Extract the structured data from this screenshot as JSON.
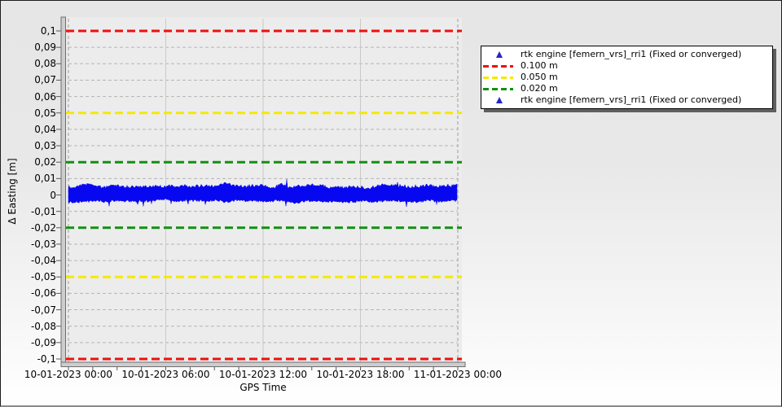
{
  "chart_data": {
    "type": "line",
    "title": "",
    "xlabel": "GPS Time",
    "ylabel": "Δ Easting [m]",
    "x_axis": {
      "tick_labels": [
        "10-01-2023 00:00",
        "10-01-2023 06:00",
        "10-01-2023 12:00",
        "10-01-2023 18:00",
        "11-01-2023 00:00"
      ],
      "tick_hours": [
        0,
        6,
        12,
        18,
        24
      ],
      "minor_tick_step_hours": 1.5,
      "solid_grid_hours": [
        6,
        12,
        18
      ],
      "dashed_grid_hours": [
        0,
        24
      ],
      "range_hours": [
        0,
        24
      ]
    },
    "y_axis": {
      "tick_values": [
        0.1,
        0.09,
        0.08,
        0.07,
        0.06,
        0.05,
        0.04,
        0.03,
        0.02,
        0.01,
        0,
        -0.01,
        -0.02,
        -0.03,
        -0.04,
        -0.05,
        -0.06,
        -0.07,
        -0.08,
        -0.09,
        -0.1
      ],
      "tick_labels": [
        "0,1",
        "0,09",
        "0,08",
        "0,07",
        "0,06",
        "0,05",
        "0,04",
        "0,03",
        "0,02",
        "0,01",
        "0",
        "-0,01",
        "-0,02",
        "-0,03",
        "-0,04",
        "-0,05",
        "-0,06",
        "-0,07",
        "-0,08",
        "-0,09",
        "-0,1"
      ],
      "grid_step": 0.01,
      "range": [
        -0.104,
        0.108
      ]
    },
    "grid": {
      "on": true,
      "h_color": "#b4b4b4",
      "v_solid_color": "#c9c9c9",
      "v_dashed_color": "#9c9c9c"
    },
    "plot_bg": "#ececec",
    "thresholds": [
      {
        "value": 0.1,
        "color": "#ee1010",
        "label": "0.100 m"
      },
      {
        "value": -0.1,
        "color": "#ee1010",
        "label": "0.100 m"
      },
      {
        "value": 0.05,
        "color": "#f3ea00",
        "label": "0.050 m"
      },
      {
        "value": -0.05,
        "color": "#f3ea00",
        "label": "0.050 m"
      },
      {
        "value": 0.02,
        "color": "#129012",
        "label": "0.020 m"
      },
      {
        "value": -0.02,
        "color": "#129012",
        "label": "0.020 m"
      }
    ],
    "series": [
      {
        "name": "rtk engine [femern_vrs]_rri1 (Fixed or converged)",
        "color": "#0808f0",
        "marker": "triangle",
        "shape": "noise_band",
        "seed": 20230110,
        "mean": 0.0005,
        "typical_top": 0.006,
        "typical_bottom": -0.0045,
        "max_peak": 0.0128,
        "min_dip": -0.0088
      }
    ],
    "legend_position": "right-top"
  },
  "legend": {
    "items": [
      {
        "marker": "triangle",
        "color": "#2424cc",
        "label": "rtk engine [femern_vrs]_rri1 (Fixed or converged)"
      },
      {
        "marker": "dashes",
        "color": "#ee1010",
        "label": "0.100 m"
      },
      {
        "marker": "dashes",
        "color": "#f3ea00",
        "label": "0.050 m"
      },
      {
        "marker": "dashes",
        "color": "#129012",
        "label": "0.020 m"
      },
      {
        "marker": "triangle",
        "color": "#2424cc",
        "label": "rtk engine [femern_vrs]_rri1 (Fixed or converged)"
      }
    ]
  }
}
